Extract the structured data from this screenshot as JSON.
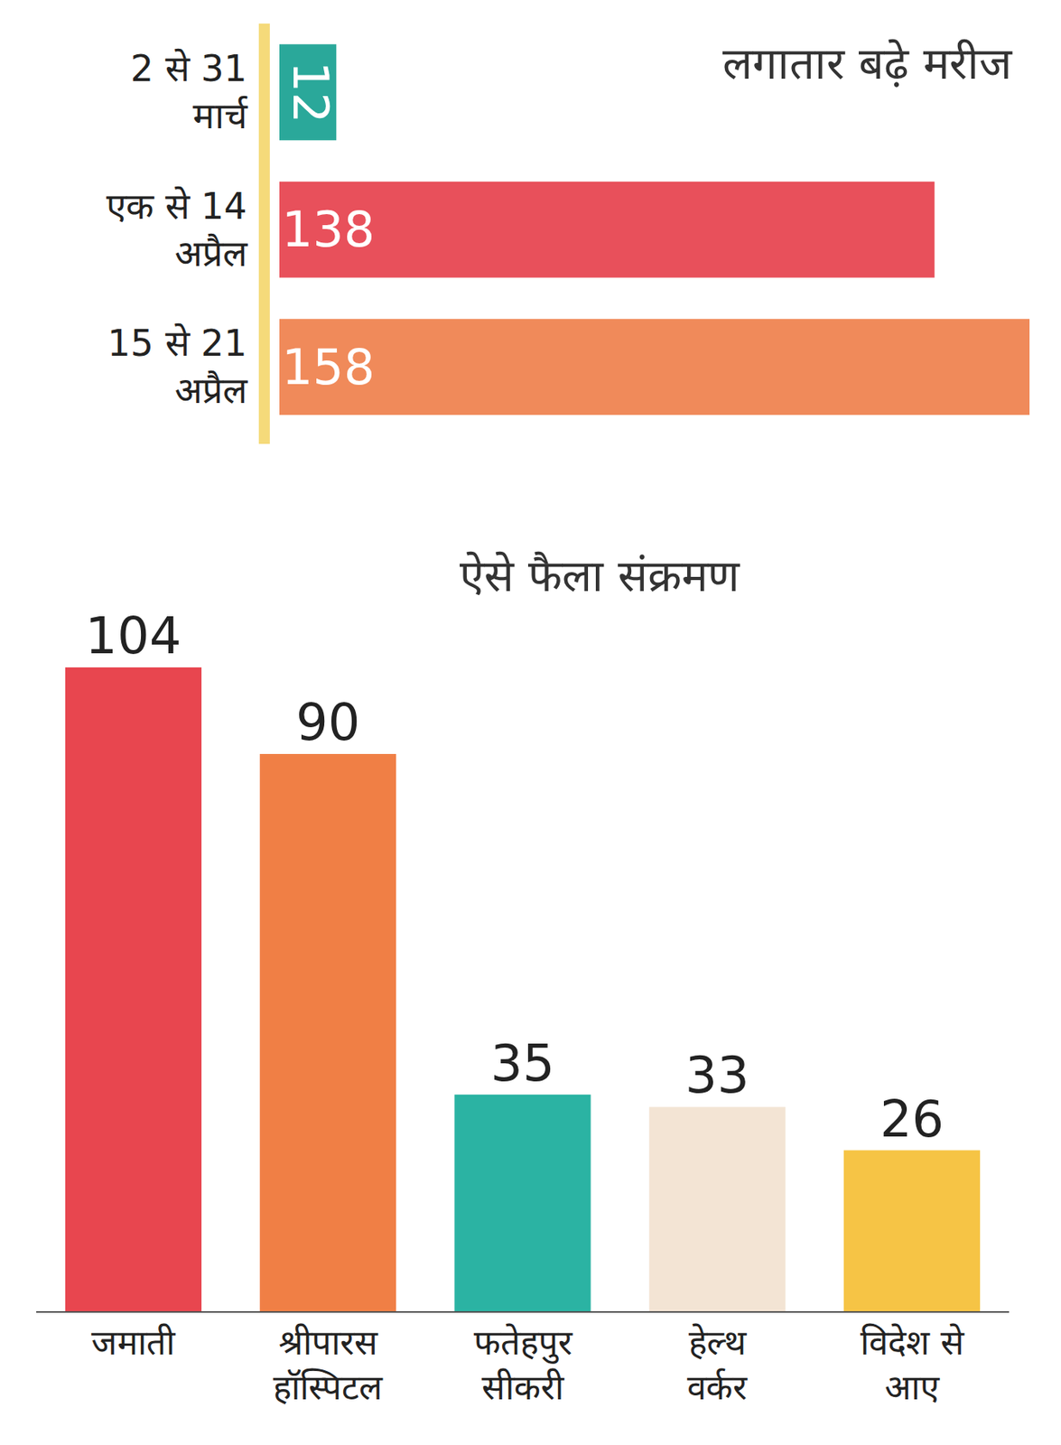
{
  "chart_data": [
    {
      "type": "bar",
      "orientation": "horizontal",
      "title": "लगातार बढ़े मरीज",
      "categories": [
        "2 से 31 मार्च",
        "एक से 14 अप्रैल",
        "15 से 21 अप्रैल"
      ],
      "values": [
        12,
        138,
        158
      ],
      "colors": [
        "#2aa89a",
        "#e8505b",
        "#f08a5a"
      ],
      "xlim": [
        0,
        158
      ],
      "data_labels": true,
      "tick_labels": "y",
      "grid": false
    },
    {
      "type": "bar",
      "title": "ऐसे फैला संक्रमण",
      "categories": [
        "जमाती",
        "श्रीपारस हॉस्पिटल",
        "फतेहपुर सीकरी",
        "हेल्थ वर्कर",
        "विदेश से आए"
      ],
      "values": [
        104,
        90,
        35,
        33,
        26
      ],
      "colors": [
        "#e8464f",
        "#f07f45",
        "#2bb3a3",
        "#f3e4d4",
        "#f6c445"
      ],
      "ylim": [
        0,
        104
      ],
      "data_labels": true,
      "tick_labels": "x",
      "grid": false
    }
  ]
}
